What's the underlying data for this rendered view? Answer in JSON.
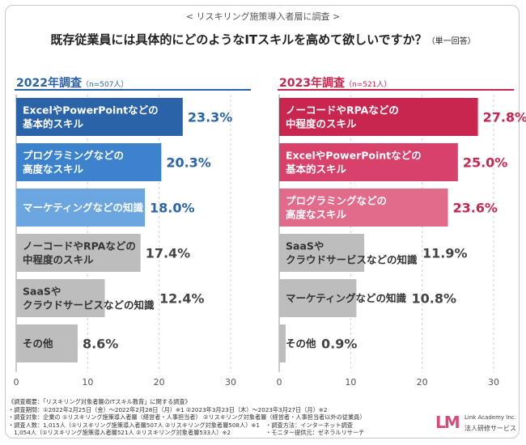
{
  "header": {
    "survey_label": "< リスキリング施策導入者層に調査 >",
    "title": "既存従業員には具体的にどのようなITスキルを高めて欲しいですか？",
    "title_note": "（単一回答）"
  },
  "chart_data": [
    {
      "type": "bar",
      "orientation": "horizontal",
      "title": "2022年調査",
      "sample_note": "（n=507人）",
      "categories": [
        "ExcelやPowerPointなどの\n基本的スキル",
        "プログラミングなどの\n高度なスキル",
        "マーケティングなどの知識",
        "ノーコードやRPAなどの\n中程度のスキル",
        "SaaSや\nクラウドサービスなどの知識",
        "その他"
      ],
      "values": [
        23.3,
        20.3,
        18.0,
        17.4,
        12.4,
        8.6
      ],
      "value_labels": [
        "23.3%",
        "20.3%",
        "18.0%",
        "17.4%",
        "12.4%",
        "8.6%"
      ],
      "bar_colors": [
        "#2a63a8",
        "#3c82cd",
        "#6ba6e0",
        "#bdbdbd",
        "#bdbdbd",
        "#bdbdbd"
      ],
      "label_colors": [
        "#ffffff",
        "#ffffff",
        "#ffffff",
        "#333333",
        "#333333",
        "#333333"
      ],
      "value_colors": [
        "#2a63a8",
        "#2a63a8",
        "#2a63a8",
        "#444444",
        "#444444",
        "#444444"
      ],
      "accent": "#2a63a8",
      "x_ticks": [
        0,
        10,
        20,
        30
      ],
      "xlim": [
        0,
        30
      ],
      "grid": true
    },
    {
      "type": "bar",
      "orientation": "horizontal",
      "title": "2023年調査",
      "sample_note": "（n=521人）",
      "categories": [
        "ノーコードやRPAなどの\n中程度のスキル",
        "ExcelやPowerPointなどの\n基本的スキル",
        "プログラミングなどの\n高度なスキル",
        "SaaSや\nクラウドサービスなどの知識",
        "マーケティングなどの知識",
        "その他"
      ],
      "values": [
        27.8,
        25.0,
        23.6,
        11.9,
        10.8,
        0.9
      ],
      "value_labels": [
        "27.8%",
        "25.0%",
        "23.6%",
        "11.9%",
        "10.8%",
        "0.9%"
      ],
      "bar_colors": [
        "#c8254f",
        "#d8416a",
        "#e26a8a",
        "#bdbdbd",
        "#bdbdbd",
        "#bdbdbd"
      ],
      "label_colors": [
        "#ffffff",
        "#ffffff",
        "#ffffff",
        "#333333",
        "#333333",
        "#333333"
      ],
      "value_colors": [
        "#c8254f",
        "#c8254f",
        "#c8254f",
        "#444444",
        "#444444",
        "#444444"
      ],
      "accent": "#c8254f",
      "x_ticks": [
        0,
        10,
        20,
        30
      ],
      "xlim": [
        0,
        30
      ],
      "grid": true
    }
  ],
  "footnotes": [
    "《調査概要：「リスキリング対象者層のITスキル教育」に関する調査》",
    "・調査期間：①2022年2月25日（金）〜2022年2月28日（月）※1 ②2023年3月23日（木）〜2023年3月27日（月）※2",
    "・調査対象：企業の ①リスキリング施策導入者層（経営者・人事担当者） ②リスキリング対象者層（経営者・人事担当者以外の従業員）",
    "・調査人数：1,015人（①リスキリング施策導入者層507人 ②リスキリング対象者層508人）※1　・調査方法：インターネット調査",
    "　1,054人（①リスキリング施策導入者層521人 ②リスキリング対象者層533人）※2　　　　　　・モニター提供元：ゼネラルリサーチ"
  ],
  "logo": {
    "mark": "LM",
    "name": "Link Academy Inc.",
    "sub": "法人研修サービス"
  }
}
